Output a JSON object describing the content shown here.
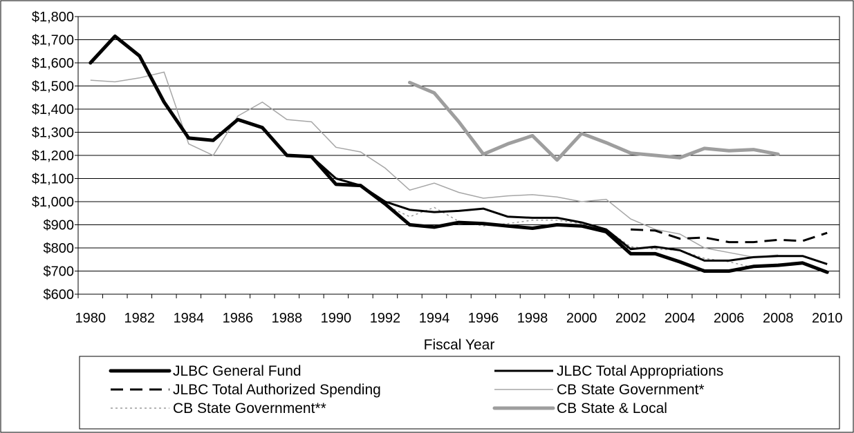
{
  "chart_data": {
    "type": "line",
    "xlabel": "Fiscal Year",
    "ylabel": "",
    "ylim": [
      600,
      1800
    ],
    "ytick_step": 100,
    "ytick_labels": [
      "$600",
      "$700",
      "$800",
      "$900",
      "$1,000",
      "$1,100",
      "$1,200",
      "$1,300",
      "$1,400",
      "$1,500",
      "$1,600",
      "$1,700",
      "$1,800"
    ],
    "xlim": [
      1980,
      2010
    ],
    "xtick_labels": [
      "1980",
      "1982",
      "1984",
      "1986",
      "1988",
      "1990",
      "1992",
      "1994",
      "1996",
      "1998",
      "2000",
      "2002",
      "2004",
      "2006",
      "2008",
      "2010"
    ],
    "grid": "horizontal",
    "legend_placement": "bottom",
    "series": [
      {
        "name": "JLBC General Fund",
        "style": "thick-solid",
        "color": "#000000",
        "x": [
          1980,
          1981,
          1982,
          1983,
          1984,
          1985,
          1986,
          1987,
          1988,
          1989,
          1990,
          1991,
          1992,
          1993,
          1994,
          1995,
          1996,
          1997,
          1998,
          1999,
          2000,
          2001,
          2002,
          2003,
          2004,
          2005,
          2006,
          2007,
          2008,
          2009,
          2010
        ],
        "values": [
          1600,
          1715,
          1630,
          1430,
          1275,
          1265,
          1355,
          1320,
          1200,
          1195,
          1075,
          1070,
          990,
          900,
          890,
          910,
          905,
          895,
          885,
          900,
          895,
          870,
          775,
          775,
          740,
          700,
          700,
          720,
          725,
          735,
          695
        ]
      },
      {
        "name": "JLBC Total Appropriations",
        "style": "solid",
        "color": "#000000",
        "x": [
          1989,
          1990,
          1991,
          1992,
          1993,
          1994,
          1995,
          1996,
          1997,
          1998,
          1999,
          2000,
          2001,
          2002,
          2003,
          2004,
          2005,
          2006,
          2007,
          2008,
          2009,
          2010
        ],
        "values": [
          1195,
          1100,
          1070,
          1000,
          965,
          955,
          960,
          970,
          935,
          930,
          930,
          910,
          880,
          795,
          805,
          790,
          745,
          745,
          760,
          765,
          765,
          730
        ]
      },
      {
        "name": "JLBC Total Authorized Spending",
        "style": "dashed",
        "color": "#000000",
        "x": [
          2002,
          2003,
          2004,
          2005,
          2006,
          2007,
          2008,
          2009,
          2010
        ],
        "values": [
          880,
          875,
          840,
          845,
          825,
          825,
          835,
          830,
          865
        ]
      },
      {
        "name": "CB State Government*",
        "style": "thin-solid",
        "color": "#a6a6a6",
        "x": [
          1980,
          1981,
          1982,
          1983,
          1984,
          1985,
          1986,
          1987,
          1988,
          1989,
          1990,
          1991,
          1992,
          1993,
          1994,
          1995,
          1996,
          1997,
          1998,
          1999,
          2000,
          2001,
          2002,
          2003,
          2004,
          2005,
          2006,
          2007,
          2008
        ],
        "values": [
          1525,
          1518,
          1535,
          1560,
          1250,
          1200,
          1370,
          1430,
          1355,
          1345,
          1235,
          1215,
          1145,
          1050,
          1080,
          1040,
          1015,
          1025,
          1030,
          1020,
          1000,
          1010,
          925,
          880,
          860,
          800,
          780,
          760,
          770
        ]
      },
      {
        "name": "CB State Government**",
        "style": "dotted",
        "color": "#999999",
        "x": [
          1992,
          1993,
          1994,
          1995,
          1996,
          1997,
          1998,
          1999,
          2000,
          2001,
          2002,
          2003,
          2004,
          2005,
          2006,
          2007,
          2008,
          2009
        ],
        "values": [
          985,
          935,
          975,
          915,
          895,
          905,
          920,
          920,
          905,
          880,
          805,
          795,
          790,
          755,
          740,
          715,
          730,
          730
        ]
      },
      {
        "name": "CB State & Local",
        "style": "thick-solid",
        "color": "#9e9e9e",
        "x": [
          1993,
          1994,
          1995,
          1996,
          1997,
          1998,
          1999,
          2000,
          2001,
          2002,
          2003,
          2004,
          2005,
          2006,
          2007,
          2008
        ],
        "values": [
          1515,
          1470,
          1345,
          1205,
          1250,
          1285,
          1180,
          1295,
          1255,
          1210,
          1200,
          1190,
          1230,
          1220,
          1225,
          1205
        ]
      }
    ]
  }
}
